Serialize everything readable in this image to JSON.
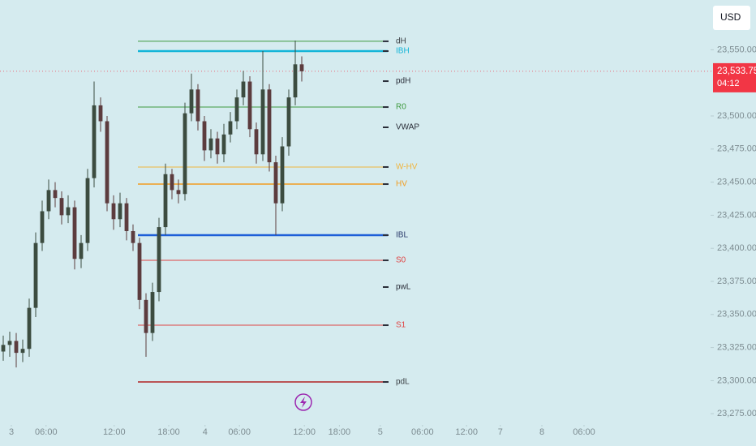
{
  "chart_data": {
    "type": "candlestick",
    "currency": "USD",
    "up_color": "#3c4c40",
    "down_color": "#5c3c3e",
    "open": [
      23322,
      23327,
      23330,
      23321,
      23324,
      23355,
      23404,
      23428,
      23444,
      23438,
      23425,
      23431,
      23392,
      23404,
      23453,
      23508,
      23496,
      23434,
      23422,
      23434,
      23413,
      23404,
      23361,
      23336,
      23367,
      23416,
      23456,
      23444,
      23441,
      23502,
      23520,
      23496,
      23474,
      23483,
      23471,
      23486,
      23496,
      23514,
      23526,
      23490,
      23471,
      23520,
      23465,
      23434,
      23477,
      23514,
      23539
    ],
    "high": [
      23334,
      23337,
      23336,
      23331,
      23362,
      23412,
      23436,
      23452,
      23450,
      23443,
      23440,
      23436,
      23410,
      23460,
      23526,
      23514,
      23500,
      23440,
      23442,
      23438,
      23418,
      23408,
      23366,
      23374,
      23423,
      23464,
      23460,
      23452,
      23510,
      23532,
      23524,
      23500,
      23490,
      23488,
      23494,
      23503,
      23520,
      23534,
      23530,
      23495,
      23549,
      23524,
      23470,
      23484,
      23520,
      23557,
      23545
    ],
    "low": [
      23315,
      23318,
      23310,
      23314,
      23318,
      23348,
      23398,
      23422,
      23431,
      23418,
      23419,
      23384,
      23385,
      23398,
      23446,
      23488,
      23428,
      23414,
      23416,
      23406,
      23398,
      23354,
      23318,
      23330,
      23360,
      23410,
      23437,
      23434,
      23436,
      23496,
      23489,
      23466,
      23468,
      23464,
      23465,
      23480,
      23490,
      23508,
      23484,
      23464,
      23466,
      23458,
      23410,
      23428,
      23470,
      23508,
      23526
    ],
    "close": [
      23327,
      23330,
      23321,
      23324,
      23355,
      23404,
      23428,
      23444,
      23438,
      23425,
      23431,
      23392,
      23404,
      23453,
      23508,
      23496,
      23434,
      23422,
      23434,
      23413,
      23404,
      23361,
      23336,
      23367,
      23416,
      23456,
      23444,
      23441,
      23502,
      23520,
      23496,
      23474,
      23483,
      23471,
      23486,
      23496,
      23514,
      23526,
      23490,
      23471,
      23520,
      23465,
      23434,
      23477,
      23514,
      23539,
      23533.75
    ],
    "levels": [
      {
        "name": "dH",
        "value": 23556.4,
        "color": "#3f9a3f",
        "width": 1,
        "line": true,
        "label_color": "#3a3f44"
      },
      {
        "name": "IBH",
        "value": 23549,
        "color": "#13b5d8",
        "width": 2.5,
        "line": true,
        "label_color": "#13b5d8"
      },
      {
        "name": "pdH",
        "value": 23526.3,
        "color": "#2a2e39",
        "width": 1,
        "line": false,
        "label_color": "#2a2e39"
      },
      {
        "name": "R0",
        "value": 23506.7,
        "color": "#3f9a3f",
        "width": 1,
        "line": true,
        "label_color": "#3f9a3f"
      },
      {
        "name": "VWAP",
        "value": 23491.4,
        "color": "#2a2e39",
        "width": 1,
        "line": false,
        "label_color": "#2a2e39"
      },
      {
        "name": "W-HV",
        "value": 23461.4,
        "color": "#f0b43c",
        "width": 1,
        "line": true,
        "label_color": "#f0b43c"
      },
      {
        "name": "HV",
        "value": 23448.5,
        "color": "#f29d20",
        "width": 1.5,
        "line": true,
        "label_color": "#f29d20"
      },
      {
        "name": "IBL",
        "value": 23409.9,
        "color": "#1e5fd8",
        "width": 2.5,
        "line": true,
        "label_color": "#2a3a6a"
      },
      {
        "name": "S0",
        "value": 23390.9,
        "color": "#e04444",
        "width": 1,
        "line": true,
        "label_color": "#e04444"
      },
      {
        "name": "pwL",
        "value": 23370.7,
        "color": "#2a2e39",
        "width": 1,
        "line": false,
        "label_color": "#2a2e39"
      },
      {
        "name": "S1",
        "value": 23341.9,
        "color": "#e04444",
        "width": 1,
        "line": true,
        "label_color": "#e04444"
      },
      {
        "name": "pdL",
        "value": 23299,
        "color": "#b22222",
        "width": 1.5,
        "line": true,
        "label_color": "#3a3f44"
      }
    ],
    "last": {
      "value": 23533.75,
      "label": "23,533.75",
      "countdown": "04:12",
      "color": "#f23645"
    },
    "ylim": [
      23269,
      23587.6
    ],
    "yticks": [
      {
        "value": 23275,
        "label": "23,275.00"
      },
      {
        "value": 23300,
        "label": "23,300.00"
      },
      {
        "value": 23325,
        "label": "23,325.00"
      },
      {
        "value": 23350,
        "label": "23,350.00"
      },
      {
        "value": 23375,
        "label": "23,375.00"
      },
      {
        "value": 23400,
        "label": "23,400.00"
      },
      {
        "value": 23425,
        "label": "23,425.00"
      },
      {
        "value": 23450,
        "label": "23,450.00"
      },
      {
        "value": 23475,
        "label": "23,475.00"
      },
      {
        "value": 23500,
        "label": "23,500.00"
      },
      {
        "value": 23550,
        "label": "23,550.00"
      }
    ],
    "xlim": [
      0,
      108.75
    ],
    "xticks": [
      {
        "value": 1.75,
        "label": "3"
      },
      {
        "value": 7.1,
        "label": "06:00"
      },
      {
        "value": 17.6,
        "label": "12:00"
      },
      {
        "value": 26,
        "label": "18:00"
      },
      {
        "value": 31.6,
        "label": "4"
      },
      {
        "value": 36.9,
        "label": "06:00"
      },
      {
        "value": 46.9,
        "label": "12:00"
      },
      {
        "value": 52.3,
        "label": "18:00"
      },
      {
        "value": 58.6,
        "label": "5"
      },
      {
        "value": 65.1,
        "label": "06:00"
      },
      {
        "value": 71.9,
        "label": "12:00"
      },
      {
        "value": 77.1,
        "label": "7"
      },
      {
        "value": 83.5,
        "label": "8"
      },
      {
        "value": 90,
        "label": "06:00"
      }
    ]
  }
}
